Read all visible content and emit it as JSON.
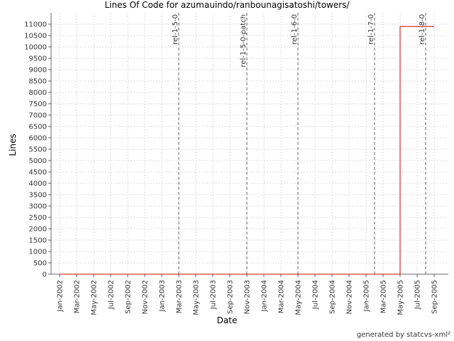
{
  "chart_data": {
    "type": "line",
    "title": "Lines Of Code for azumauindo/ranbounagisatoshi/towers/",
    "xlabel": "Date",
    "ylabel": "Lines",
    "footer": "generated by statcvs-xml²",
    "x": [
      "2002-01",
      "2005-05",
      "2005-05",
      "2005-09"
    ],
    "series": [
      {
        "name": "Lines",
        "color": "#cc0000",
        "values": [
          0,
          0,
          10900,
          10900
        ]
      }
    ],
    "xlim": [
      "2001-12",
      "2005-10"
    ],
    "xticks": [
      {
        "value": "2002-01",
        "label": "Jan-2002"
      },
      {
        "value": "2002-03",
        "label": "Mar-2002"
      },
      {
        "value": "2002-05",
        "label": "May-2002"
      },
      {
        "value": "2002-07",
        "label": "Jul-2002"
      },
      {
        "value": "2002-09",
        "label": "Sep-2002"
      },
      {
        "value": "2002-11",
        "label": "Nov-2002"
      },
      {
        "value": "2003-01",
        "label": "Jan-2003"
      },
      {
        "value": "2003-03",
        "label": "Mar-2003"
      },
      {
        "value": "2003-05",
        "label": "May-2003"
      },
      {
        "value": "2003-07",
        "label": "Jul-2003"
      },
      {
        "value": "2003-09",
        "label": "Sep-2003"
      },
      {
        "value": "2003-11",
        "label": "Nov-2003"
      },
      {
        "value": "2004-01",
        "label": "Jan-2004"
      },
      {
        "value": "2004-03",
        "label": "Mar-2004"
      },
      {
        "value": "2004-05",
        "label": "May-2004"
      },
      {
        "value": "2004-07",
        "label": "Jul-2004"
      },
      {
        "value": "2004-09",
        "label": "Sep-2004"
      },
      {
        "value": "2004-11",
        "label": "Nov-2004"
      },
      {
        "value": "2005-01",
        "label": "Jan-2005"
      },
      {
        "value": "2005-03",
        "label": "Mar-2005"
      },
      {
        "value": "2005-05",
        "label": "May-2005"
      },
      {
        "value": "2005-07",
        "label": "Jul-2005"
      },
      {
        "value": "2005-09",
        "label": "Sep-2005"
      }
    ],
    "ylim": [
      0,
      11500
    ],
    "yticks": [
      0,
      500,
      1000,
      1500,
      2000,
      2500,
      3000,
      3500,
      4000,
      4500,
      5000,
      5500,
      6000,
      6500,
      7000,
      7500,
      8000,
      8500,
      9000,
      9500,
      10000,
      10500,
      11000
    ],
    "grid": true,
    "markers": [
      {
        "x": "2003-03",
        "label": "rel-1-5-0"
      },
      {
        "x": "2003-11",
        "label": "rel-1-5-0-patch"
      },
      {
        "x": "2004-05",
        "label": "rel-1-6-0"
      },
      {
        "x": "2005-02",
        "label": "rel-1-7-0"
      },
      {
        "x": "2005-08",
        "label": "rel-1-8-0"
      }
    ]
  }
}
